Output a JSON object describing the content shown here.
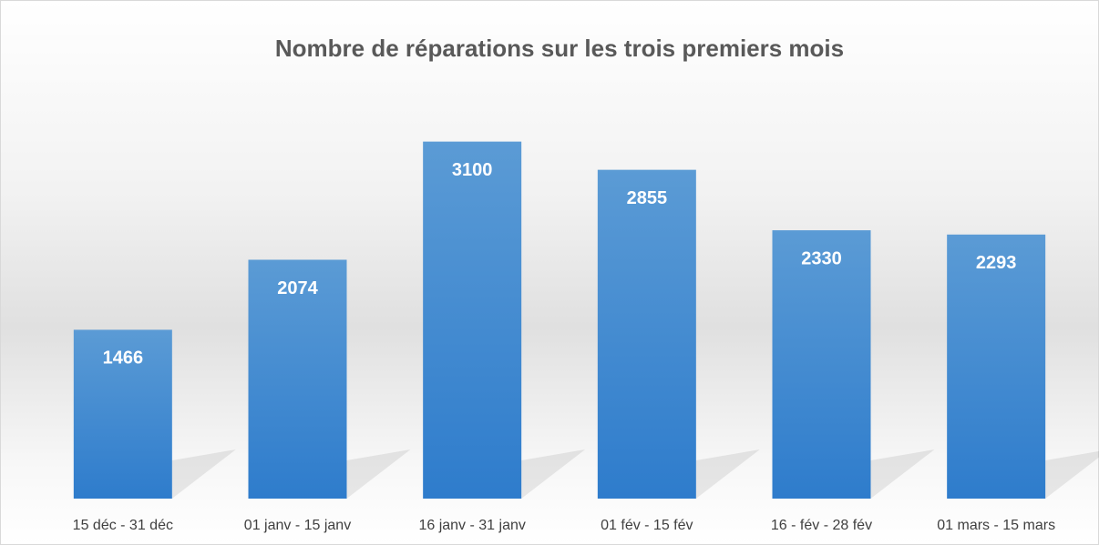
{
  "chart_data": {
    "type": "bar",
    "title": "Nombre de réparations sur les trois premiers mois",
    "categories": [
      "15 déc - 31 déc",
      "01 janv - 15 janv",
      "16 janv - 31 janv",
      "01 fév - 15 fév",
      "16 - fév - 28 fév",
      "01 mars - 15 mars"
    ],
    "values": [
      1466,
      2074,
      3100,
      2855,
      2330,
      2293
    ],
    "color": "#3f88d2",
    "ylim": [
      0,
      3500
    ]
  }
}
